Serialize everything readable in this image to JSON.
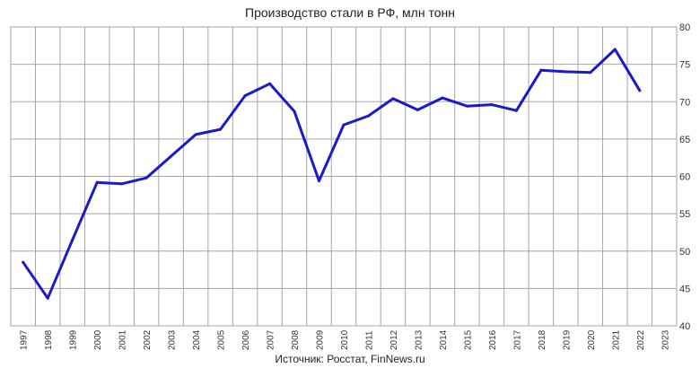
{
  "chart_data": {
    "type": "line",
    "title": "Производство стали в РФ, млн тонн",
    "source": "Источник: Росстат, FinNews.ru",
    "xlabel": "",
    "ylabel": "",
    "ylim": [
      40,
      80
    ],
    "y_ticks": [
      40,
      45,
      50,
      55,
      60,
      65,
      70,
      75,
      80
    ],
    "y_axis_side": "right",
    "grid": true,
    "categories": [
      "1997",
      "1998",
      "1999",
      "2000",
      "2001",
      "2002",
      "2003",
      "2004",
      "2005",
      "2006",
      "2007",
      "2008",
      "2009",
      "2010",
      "2011",
      "2012",
      "2013",
      "2014",
      "2015",
      "2016",
      "2017",
      "2018",
      "2019",
      "2020",
      "2021",
      "2022",
      "2023"
    ],
    "series": [
      {
        "color": "#1a1acc",
        "values": [
          48.5,
          43.7,
          51.5,
          59.2,
          59.0,
          59.8,
          62.7,
          65.6,
          66.3,
          70.8,
          72.4,
          68.7,
          59.4,
          66.9,
          68.1,
          70.4,
          68.9,
          70.5,
          69.4,
          69.6,
          68.8,
          74.2,
          74.0,
          73.9,
          77.0,
          71.5,
          null
        ]
      }
    ]
  }
}
